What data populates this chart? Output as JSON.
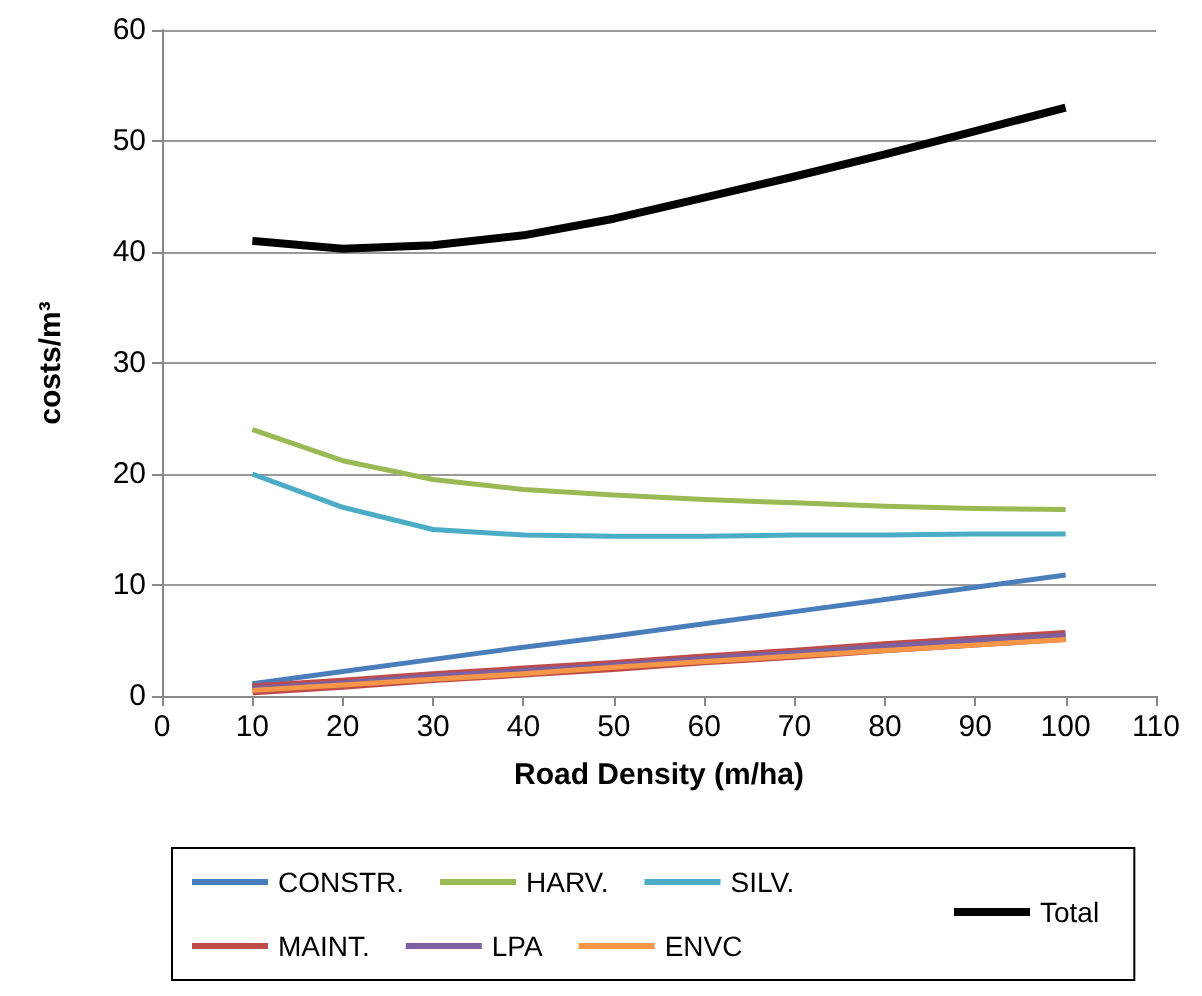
{
  "chart_data": {
    "type": "line",
    "xlabel": "Road Density (m/ha)",
    "ylabel": "costs/m³",
    "x": [
      10,
      20,
      30,
      40,
      50,
      60,
      70,
      80,
      90,
      100
    ],
    "xlim": [
      0,
      110
    ],
    "xticks": [
      0,
      10,
      20,
      30,
      40,
      50,
      60,
      70,
      80,
      90,
      100,
      110
    ],
    "ylim": [
      0,
      60
    ],
    "yticks": [
      0,
      10,
      20,
      30,
      40,
      50,
      60
    ],
    "grid": "y",
    "legend": "bottom",
    "marker": "none",
    "series": [
      {
        "name": "CONSTR.",
        "color": "#4a7ebb",
        "values": [
          1.1,
          2.2,
          3.3,
          4.4,
          5.4,
          6.5,
          7.6,
          8.7,
          9.8,
          10.9
        ]
      },
      {
        "name": "HARV.",
        "color": "#98b954",
        "values": [
          24,
          21.2,
          19.5,
          18.6,
          18.1,
          17.7,
          17.4,
          17.1,
          16.9,
          16.8
        ]
      },
      {
        "name": "SILV.",
        "color": "#4bacc6",
        "values": [
          20,
          17,
          15,
          14.5,
          14.4,
          14.4,
          14.5,
          14.5,
          14.6,
          14.6
        ]
      },
      {
        "name": "MAINT.",
        "color": "#be4b48",
        "values": [
          0.6,
          1.1,
          1.7,
          2.2,
          2.7,
          3.3,
          3.8,
          4.4,
          4.9,
          5.4
        ]
      },
      {
        "name": "LPA",
        "color": "#7d60a0",
        "values": [
          0.7,
          1.2,
          1.8,
          2.3,
          2.8,
          3.4,
          3.9,
          4.5,
          5,
          5.5
        ]
      },
      {
        "name": "ENVC",
        "color": "#f79646",
        "values": [
          0.5,
          1,
          1.5,
          2,
          2.6,
          3.1,
          3.6,
          4.1,
          4.6,
          5.1
        ]
      },
      {
        "name": "Total",
        "color": "#000000",
        "values": [
          41,
          40.3,
          40.6,
          41.5,
          43,
          44.9,
          46.8,
          48.8,
          50.9,
          53
        ]
      }
    ]
  }
}
